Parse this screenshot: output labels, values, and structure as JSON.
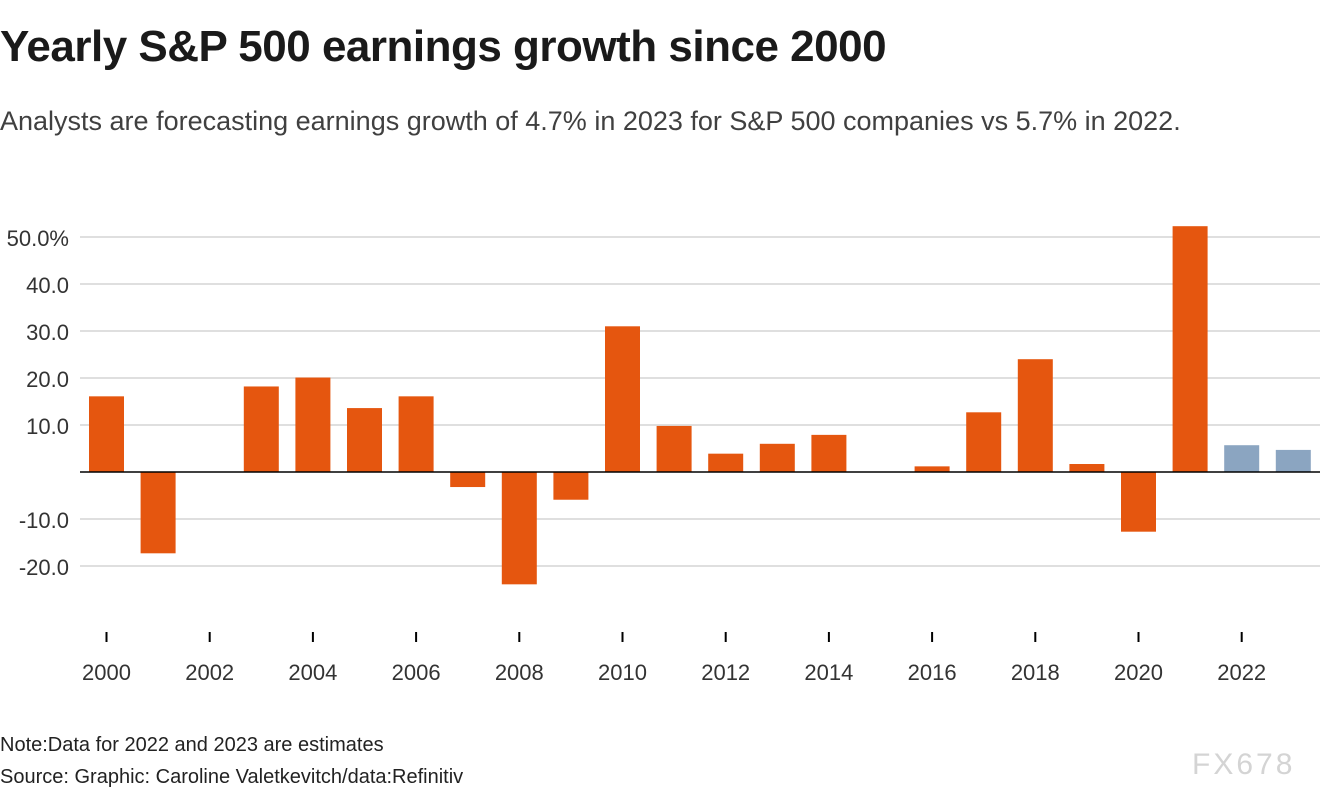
{
  "chart_data": {
    "type": "bar",
    "title": "Yearly S&P 500 earnings growth since 2000",
    "subtitle": "Analysts are forecasting earnings growth of 4.7% in 2023 for S&P 500 companies vs 5.7% in 2022.",
    "xlabel": "",
    "ylabel": "",
    "categories": [
      "2000",
      "2001",
      "2002",
      "2003",
      "2004",
      "2005",
      "2006",
      "2007",
      "2008",
      "2009",
      "2010",
      "2011",
      "2012",
      "2013",
      "2014",
      "2015",
      "2016",
      "2017",
      "2018",
      "2019",
      "2020",
      "2021",
      "2022",
      "2023"
    ],
    "values": [
      16.1,
      -17.3,
      0,
      18.2,
      20.1,
      13.6,
      16.1,
      -3.2,
      -23.9,
      -5.9,
      31.0,
      9.8,
      3.9,
      6.0,
      7.9,
      0,
      1.2,
      12.7,
      24.0,
      1.7,
      -12.7,
      52.3,
      5.7,
      4.7
    ],
    "estimate_years": [
      "2022",
      "2023"
    ],
    "ylim": [
      -32,
      55
    ],
    "y_ticks": [
      -20,
      -10,
      10,
      20,
      30,
      40,
      50
    ],
    "y_tick_labels": [
      "-20.0",
      "-10.0",
      "10.0",
      "20.0",
      "30.0",
      "40.0",
      "50.0%"
    ],
    "x_tick_labels": [
      "2000",
      "2002",
      "2004",
      "2006",
      "2008",
      "2010",
      "2012",
      "2014",
      "2016",
      "2018",
      "2020",
      "2022"
    ],
    "colors": {
      "actual": "#E5560F",
      "estimate": "#8BA5C1",
      "grid": "#cccccc",
      "zero": "#000000"
    },
    "grid": true
  },
  "note": "Note:Data for 2022 and 2023 are estimates",
  "source": "Source: Graphic: Caroline Valetkevitch/data:Refinitiv",
  "watermark": "FX678"
}
